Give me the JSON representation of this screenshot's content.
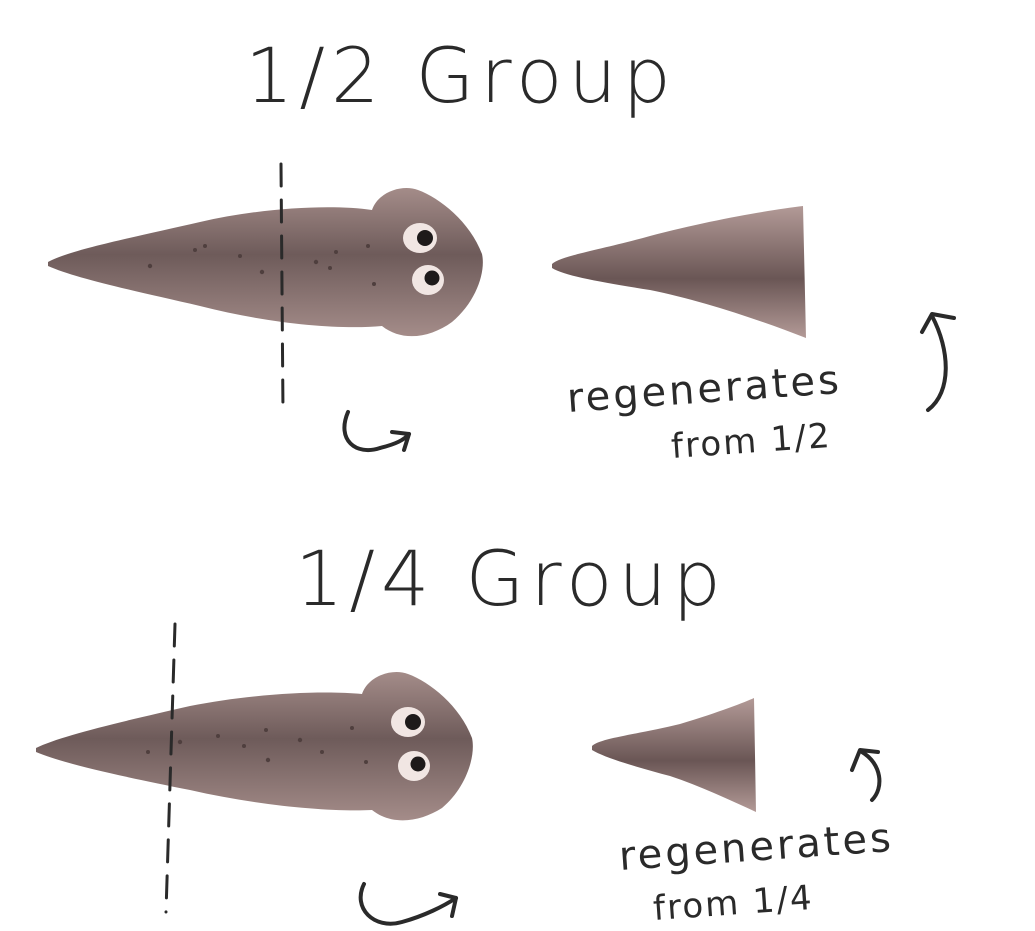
{
  "groups": [
    {
      "title": "1/2 Group",
      "note_line1": "regenerates",
      "note_line2": "from 1/2"
    },
    {
      "title": "1/4 Group",
      "note_line1": "regenerates",
      "note_line2": "from 1/4"
    }
  ],
  "colors": {
    "body": "#7d6a68",
    "body_dark": "#5f4e4d",
    "body_light": "#b59c99",
    "eye_white": "#f1e6e3",
    "pupil": "#1e1a1a",
    "ink": "#2a2a2a"
  }
}
